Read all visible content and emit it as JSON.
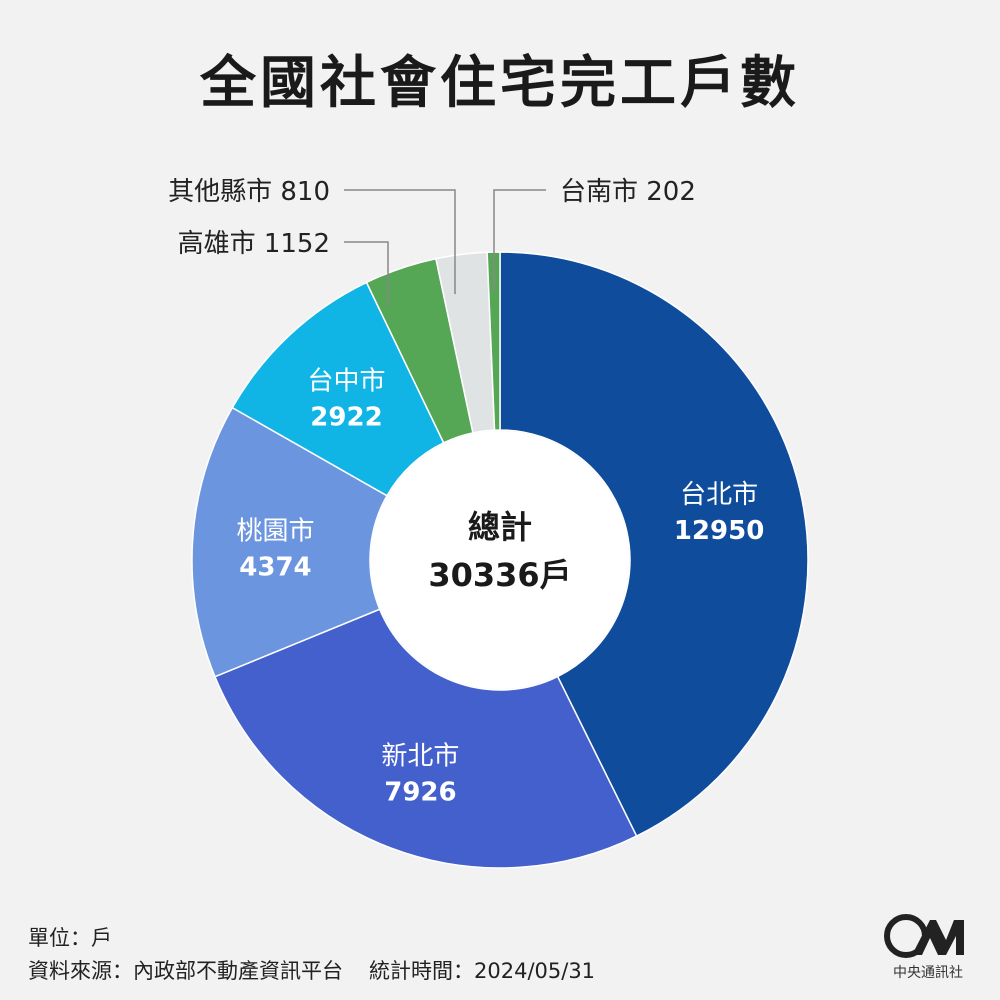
{
  "title": "全國社會住宅完工戶數",
  "center": {
    "label": "總計",
    "value": "30336戶"
  },
  "footer": {
    "unit_label": "單位：戶",
    "source_label": "資料來源：內政部不動產資訊平台",
    "time_label": "統計時間：2024/05/31"
  },
  "logo": {
    "text": "中央通訊社",
    "mark": "CNA"
  },
  "colors": {
    "background": "#f2f2f2",
    "leader": "#888888"
  },
  "chart_data": {
    "type": "pie",
    "variant": "donut",
    "total": 30336,
    "unit": "戶",
    "slices": [
      {
        "name": "台北市",
        "value": 12950,
        "color": "#0f4c9c",
        "label_text": "#ffffff"
      },
      {
        "name": "新北市",
        "value": 7926,
        "color": "#4460cc",
        "label_text": "#ffffff"
      },
      {
        "name": "桃園市",
        "value": 4374,
        "color": "#6c95e0",
        "label_text": "#ffffff"
      },
      {
        "name": "台中市",
        "value": 2922,
        "color": "#10b5e6",
        "label_text": "#ffffff"
      },
      {
        "name": "高雄市",
        "value": 1152,
        "color": "#55a655",
        "label_text": "#222222"
      },
      {
        "name": "其他縣市",
        "value": 810,
        "color": "#dfe3e3",
        "label_text": "#222222"
      },
      {
        "name": "台南市",
        "value": 202,
        "color": "#55a655",
        "label_text": "#222222"
      }
    ]
  }
}
